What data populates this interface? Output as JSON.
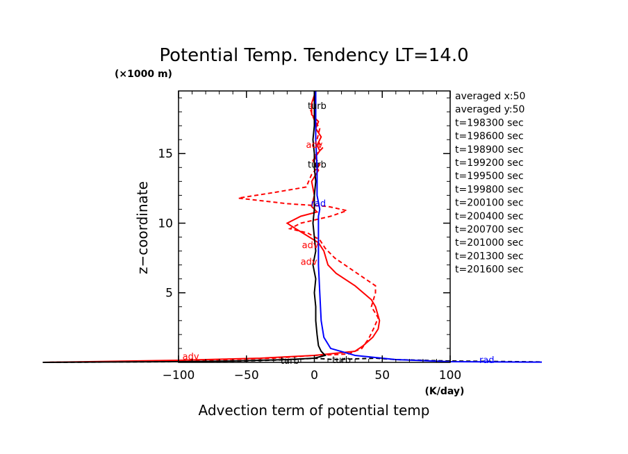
{
  "chart_data": {
    "type": "line",
    "title": "Potential Temp. Tendency LT=14.0",
    "xlabel": "Advection term of potential temp",
    "ylabel": "z−coordinate",
    "x_unit": "(K/day)",
    "y_unit": "(×1000 m)",
    "xlim": [
      -100,
      100
    ],
    "ylim": [
      0,
      19.5
    ],
    "x_ticks": [
      -100,
      -50,
      0,
      50,
      100
    ],
    "x_tick_labels": [
      "−100",
      "−50",
      "0",
      "50",
      "100"
    ],
    "y_ticks": [
      5,
      10,
      15
    ],
    "y_tick_labels": [
      "5",
      "10",
      "15"
    ],
    "grid": false,
    "info_text": [
      "averaged  x:50",
      "averaged  y:50",
      "t=198300 sec",
      "t=198600 sec",
      "t=198900 sec",
      "t=199200 sec",
      "t=199500 sec",
      "t=199800 sec",
      "t=200100 sec",
      "t=200400 sec",
      "t=200700 sec",
      "t=201000 sec",
      "t=201300 sec",
      "t=201600 sec"
    ],
    "series": [
      {
        "name": "adv",
        "color": "#ff0000",
        "style": "solid",
        "points": [
          [
            -200,
            0.0
          ],
          [
            -100,
            0.15
          ],
          [
            -40,
            0.3
          ],
          [
            0,
            0.5
          ],
          [
            30,
            0.8
          ],
          [
            36,
            1.2
          ],
          [
            43,
            1.8
          ],
          [
            47,
            2.4
          ],
          [
            48,
            3.0
          ],
          [
            45,
            4.0
          ],
          [
            42,
            4.5
          ],
          [
            30,
            5.5
          ],
          [
            16,
            6.4
          ],
          [
            10,
            7.0
          ],
          [
            7,
            8.0
          ],
          [
            3,
            8.6
          ],
          [
            -7,
            9.2
          ],
          [
            -17,
            9.8
          ],
          [
            -20,
            10.0
          ],
          [
            -10,
            10.5
          ],
          [
            2,
            10.8
          ],
          [
            -2,
            11.2
          ],
          [
            0,
            12.0
          ],
          [
            -2,
            13.0
          ],
          [
            3,
            13.8
          ],
          [
            -1,
            14.5
          ],
          [
            4,
            15.2
          ],
          [
            2,
            15.6
          ],
          [
            5,
            16.2
          ],
          [
            1,
            16.8
          ],
          [
            3,
            17.3
          ],
          [
            -2,
            17.8
          ],
          [
            -2,
            18.6
          ],
          [
            0,
            19.2
          ]
        ]
      },
      {
        "name": "adv",
        "color": "#ff0000",
        "style": "dashed",
        "points": [
          [
            -200,
            0.0
          ],
          [
            -100,
            0.1
          ],
          [
            -30,
            0.3
          ],
          [
            0,
            0.5
          ],
          [
            25,
            0.6
          ],
          [
            35,
            1.0
          ],
          [
            40,
            1.7
          ],
          [
            44,
            2.5
          ],
          [
            47,
            3.2
          ],
          [
            42,
            4.0
          ],
          [
            45,
            5.0
          ],
          [
            45,
            5.5
          ],
          [
            30,
            6.5
          ],
          [
            15,
            7.5
          ],
          [
            8,
            8.2
          ],
          [
            4,
            8.8
          ],
          [
            -5,
            9.3
          ],
          [
            -18,
            9.6
          ],
          [
            -10,
            10.0
          ],
          [
            12,
            10.5
          ],
          [
            24,
            10.9
          ],
          [
            10,
            11.2
          ],
          [
            -20,
            11.4
          ],
          [
            -56,
            11.8
          ],
          [
            -30,
            12.2
          ],
          [
            -6,
            12.6
          ],
          [
            -2,
            13.5
          ],
          [
            4,
            14.2
          ],
          [
            0,
            14.8
          ],
          [
            6,
            15.4
          ],
          [
            2,
            16.0
          ],
          [
            4,
            16.8
          ],
          [
            0,
            17.4
          ],
          [
            -3,
            18.2
          ],
          [
            0,
            19.0
          ]
        ]
      },
      {
        "name": "turb",
        "color": "#000000",
        "style": "solid",
        "points": [
          [
            -200,
            0.0
          ],
          [
            -100,
            0.05
          ],
          [
            -60,
            0.1
          ],
          [
            -20,
            0.2
          ],
          [
            0,
            0.3
          ],
          [
            8,
            0.5
          ],
          [
            5,
            0.8
          ],
          [
            3,
            1.2
          ],
          [
            2,
            2.0
          ],
          [
            1,
            3.0
          ],
          [
            1,
            4.0
          ],
          [
            0,
            5.0
          ],
          [
            1,
            6.0
          ],
          [
            -1,
            7.0
          ],
          [
            1,
            8.0
          ],
          [
            0,
            9.0
          ],
          [
            -1,
            10.0
          ],
          [
            0,
            11.0
          ],
          [
            0,
            12.0
          ],
          [
            1,
            13.0
          ],
          [
            0,
            14.0
          ],
          [
            0,
            15.0
          ],
          [
            -1,
            16.0
          ],
          [
            0,
            17.0
          ],
          [
            0,
            18.0
          ],
          [
            0,
            19.5
          ]
        ]
      },
      {
        "name": "turb",
        "color": "#000000",
        "style": "dashed",
        "points": [
          [
            -200,
            0.0
          ],
          [
            -100,
            0.05
          ],
          [
            -50,
            0.1
          ],
          [
            -15,
            0.2
          ],
          [
            0,
            0.3
          ],
          [
            15,
            0.2
          ],
          [
            45,
            0.3
          ],
          [
            60,
            0.2
          ],
          [
            100,
            0.1
          ],
          [
            200,
            0.0
          ]
        ]
      },
      {
        "name": "rad",
        "color": "#0000ff",
        "style": "solid",
        "points": [
          [
            200,
            0.0
          ],
          [
            100,
            0.05
          ],
          [
            60,
            0.2
          ],
          [
            30,
            0.5
          ],
          [
            12,
            1.0
          ],
          [
            7,
            1.8
          ],
          [
            5,
            3.0
          ],
          [
            4,
            5.0
          ],
          [
            3,
            7.0
          ],
          [
            3,
            9.0
          ],
          [
            3,
            10.5
          ],
          [
            4,
            11.0
          ],
          [
            2,
            12.0
          ],
          [
            2,
            14.0
          ],
          [
            1,
            16.0
          ],
          [
            1,
            18.0
          ],
          [
            1,
            19.5
          ]
        ]
      }
    ],
    "curve_labels": [
      {
        "text": "adv",
        "color": "#ff0000",
        "x": -91,
        "y": 0.2
      },
      {
        "text": "adv",
        "color": "#ff0000",
        "x": -3,
        "y": 8.2
      },
      {
        "text": "adv",
        "color": "#ff0000",
        "x": -4,
        "y": 7.0
      },
      {
        "text": "adv",
        "color": "#ff0000",
        "x": 0,
        "y": 15.4
      },
      {
        "text": "turb",
        "color": "#000000",
        "x": 2,
        "y": 18.2
      },
      {
        "text": "turb",
        "color": "#000000",
        "x": 2,
        "y": 14.0
      },
      {
        "text": "turb",
        "color": "#000000",
        "x": -18,
        "y": -0.1
      },
      {
        "text": "turb",
        "color": "#000000",
        "x": 20,
        "y": -0.05
      },
      {
        "text": "rad",
        "color": "#0000ff",
        "x": 3,
        "y": 11.2
      },
      {
        "text": "rad",
        "color": "#0000ff",
        "x": 127,
        "y": -0.05
      }
    ]
  }
}
